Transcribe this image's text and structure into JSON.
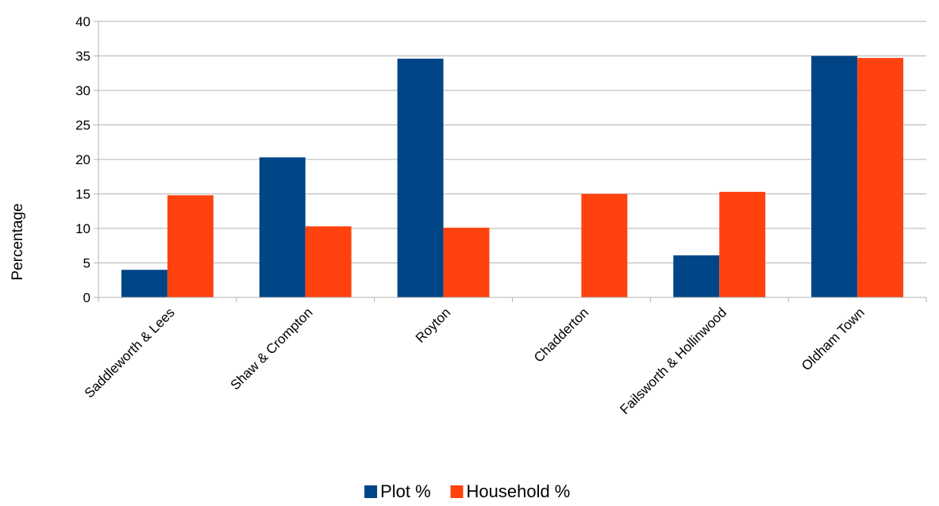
{
  "chart_data": {
    "type": "bar",
    "title": "",
    "xlabel": "",
    "ylabel": "Percentage",
    "ylim": [
      0,
      40
    ],
    "yticks": [
      0,
      5,
      10,
      15,
      20,
      25,
      30,
      35,
      40
    ],
    "grid": true,
    "legend_position": "bottom",
    "categories": [
      "Saddleworth & Lees",
      "Shaw & Crompton",
      "Royton",
      "Chadderton",
      "Failsworth & Hollinwood",
      "Oldham Town"
    ],
    "series": [
      {
        "name": "Plot %",
        "color": "#004586",
        "values": [
          4.0,
          20.3,
          34.6,
          0,
          6.1,
          35.0
        ]
      },
      {
        "name": "Household %",
        "color": "#ff420e",
        "values": [
          14.8,
          10.3,
          10.1,
          15.0,
          15.3,
          34.7
        ]
      }
    ]
  }
}
